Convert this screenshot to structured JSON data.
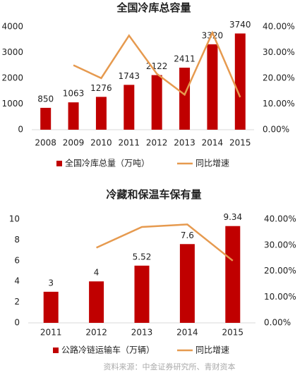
{
  "chart_data": [
    {
      "type": "bar",
      "title": "全国冷库总容量",
      "categories": [
        "2008",
        "2009",
        "2010",
        "2011",
        "2012",
        "2013",
        "2014",
        "2015"
      ],
      "series": [
        {
          "name": "全国冷库总量（万吨）",
          "color": "#c00000",
          "values": [
            850,
            1063,
            1276,
            1743,
            2122,
            2411,
            3320,
            3740
          ]
        },
        {
          "name": "同比增速",
          "color": "#e69a4f",
          "type": "line",
          "axis": "y2",
          "values": [
            null,
            25.06,
            20.04,
            36.6,
            21.74,
            13.62,
            37.7,
            12.65
          ]
        }
      ],
      "ylim": [
        0,
        4000
      ],
      "yticks": [
        0,
        1000,
        2000,
        3000,
        4000
      ],
      "y2lim": [
        0,
        40
      ],
      "y2ticks": [
        {
          "value": 0,
          "label": "0.00%"
        },
        {
          "value": 10,
          "label": "10.00%"
        },
        {
          "value": 20,
          "label": "20.00%"
        },
        {
          "value": 30,
          "label": "30.00%"
        },
        {
          "value": 40,
          "label": "40.00%"
        }
      ]
    },
    {
      "type": "bar",
      "title": "冷藏和保温车保有量",
      "categories": [
        "2011",
        "2012",
        "2013",
        "2014",
        "2015"
      ],
      "series": [
        {
          "name": "公路冷链运输车（万辆）",
          "color": "#c00000",
          "values": [
            3,
            4,
            5.52,
            7.6,
            9.34
          ]
        },
        {
          "name": "同比增速",
          "color": "#e69a4f",
          "type": "line",
          "axis": "y2",
          "values": [
            null,
            29,
            37,
            38,
            24
          ]
        }
      ],
      "ylim": [
        0,
        10
      ],
      "yticks": [
        0,
        2,
        4,
        6,
        8,
        10
      ],
      "y2lim": [
        0,
        40
      ],
      "y2ticks": [
        {
          "value": 0,
          "label": "0.00%"
        },
        {
          "value": 10,
          "label": "10.00%"
        },
        {
          "value": 20,
          "label": "20.00%"
        },
        {
          "value": 30,
          "label": "30.00%"
        },
        {
          "value": 40,
          "label": "40.00%"
        }
      ]
    }
  ],
  "source": "资料来源：中金证券研究所、青财资本"
}
